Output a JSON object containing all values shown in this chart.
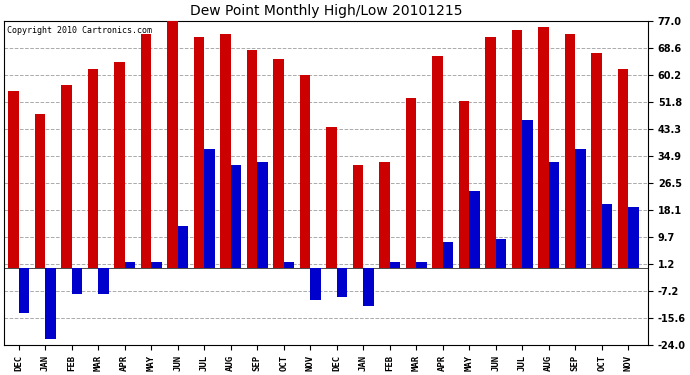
{
  "title": "Dew Point Monthly High/Low 20101215",
  "copyright": "Copyright 2010 Cartronics.com",
  "months": [
    "DEC",
    "JAN",
    "FEB",
    "MAR",
    "APR",
    "MAY",
    "JUN",
    "JUL",
    "AUG",
    "SEP",
    "OCT",
    "NOV",
    "DEC",
    "JAN",
    "FEB",
    "MAR",
    "APR",
    "MAY",
    "JUN",
    "JUL",
    "AUG",
    "SEP",
    "OCT",
    "NOV"
  ],
  "highs": [
    55,
    48,
    57,
    62,
    64,
    73,
    77,
    72,
    73,
    68,
    65,
    60,
    44,
    32,
    33,
    53,
    66,
    52,
    72,
    74,
    75,
    73,
    67,
    62
  ],
  "lows": [
    -14,
    -22,
    -8,
    -8,
    2,
    2,
    13,
    37,
    32,
    33,
    2,
    -10,
    -9,
    -12,
    2,
    2,
    8,
    24,
    9,
    46,
    33,
    37,
    20,
    19
  ],
  "high_color": "#cc0000",
  "low_color": "#0000cc",
  "bg_color": "#ffffff",
  "plot_bg": "#ffffff",
  "grid_color": "#aaaaaa",
  "yticks": [
    77.0,
    68.6,
    60.2,
    51.8,
    43.3,
    34.9,
    26.5,
    18.1,
    9.7,
    1.2,
    -7.2,
    -15.6,
    -24.0
  ],
  "ylim": [
    -24.0,
    77.0
  ],
  "bar_width": 0.4,
  "group_width": 1.0,
  "figsize": [
    6.9,
    3.75
  ],
  "dpi": 100
}
